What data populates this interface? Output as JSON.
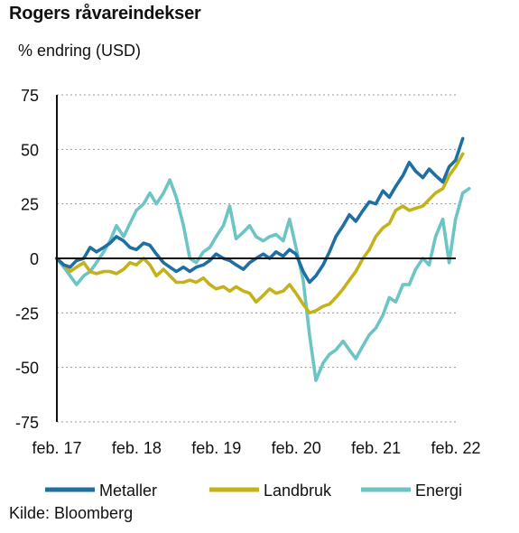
{
  "title": "Rogers råvareindekser",
  "subtitle": "% endring (USD)",
  "source": "Kilde: Bloomberg",
  "chart_data": {
    "type": "line",
    "title": "Rogers råvareindekser",
    "ylabel": "% endring (USD)",
    "xlabel": "",
    "ylim": [
      -75,
      75
    ],
    "xlim": [
      2017.0833,
      2022.0833
    ],
    "yticks": [
      75,
      50,
      25,
      0,
      -25,
      -50,
      -75
    ],
    "xticks": [
      {
        "label": "feb. 17",
        "value": 2017.0833
      },
      {
        "label": "feb. 18",
        "value": 2018.0833
      },
      {
        "label": "feb. 19",
        "value": 2019.0833
      },
      {
        "label": "feb. 20",
        "value": 2020.0833
      },
      {
        "label": "feb. 21",
        "value": 2021.0833
      },
      {
        "label": "feb. 22",
        "value": 2022.0833
      }
    ],
    "grid": "horizontal dashed",
    "legend_position": "bottom",
    "series": [
      {
        "name": "Metaller",
        "color": "#1f6fa3",
        "points": [
          [
            2017.08,
            0
          ],
          [
            2017.17,
            -3
          ],
          [
            2017.25,
            -4
          ],
          [
            2017.33,
            -1
          ],
          [
            2017.42,
            0
          ],
          [
            2017.5,
            5
          ],
          [
            2017.58,
            3
          ],
          [
            2017.67,
            5
          ],
          [
            2017.75,
            7
          ],
          [
            2017.83,
            10
          ],
          [
            2017.92,
            8
          ],
          [
            2018.0,
            5
          ],
          [
            2018.08,
            4
          ],
          [
            2018.17,
            7
          ],
          [
            2018.25,
            6
          ],
          [
            2018.33,
            2
          ],
          [
            2018.42,
            -2
          ],
          [
            2018.5,
            -4
          ],
          [
            2018.58,
            -6
          ],
          [
            2018.67,
            -4
          ],
          [
            2018.75,
            -6
          ],
          [
            2018.83,
            -4
          ],
          [
            2018.92,
            -3
          ],
          [
            2019.0,
            -1
          ],
          [
            2019.08,
            2
          ],
          [
            2019.17,
            0
          ],
          [
            2019.25,
            -1
          ],
          [
            2019.33,
            -3
          ],
          [
            2019.42,
            -5
          ],
          [
            2019.5,
            -2
          ],
          [
            2019.58,
            0
          ],
          [
            2019.67,
            2
          ],
          [
            2019.75,
            0
          ],
          [
            2019.83,
            3
          ],
          [
            2019.92,
            1
          ],
          [
            2020.0,
            4
          ],
          [
            2020.08,
            2
          ],
          [
            2020.17,
            -6
          ],
          [
            2020.25,
            -11
          ],
          [
            2020.33,
            -8
          ],
          [
            2020.42,
            -3
          ],
          [
            2020.5,
            3
          ],
          [
            2020.58,
            10
          ],
          [
            2020.67,
            15
          ],
          [
            2020.75,
            20
          ],
          [
            2020.83,
            17
          ],
          [
            2020.92,
            22
          ],
          [
            2021.0,
            26
          ],
          [
            2021.08,
            25
          ],
          [
            2021.17,
            31
          ],
          [
            2021.25,
            28
          ],
          [
            2021.33,
            33
          ],
          [
            2021.42,
            38
          ],
          [
            2021.5,
            44
          ],
          [
            2021.58,
            40
          ],
          [
            2021.67,
            37
          ],
          [
            2021.75,
            41
          ],
          [
            2021.83,
            38
          ],
          [
            2021.92,
            35
          ],
          [
            2022.0,
            42
          ],
          [
            2022.08,
            45
          ],
          [
            2022.17,
            55
          ]
        ]
      },
      {
        "name": "Landbruk",
        "color": "#c4b21a",
        "points": [
          [
            2017.08,
            0
          ],
          [
            2017.17,
            -3
          ],
          [
            2017.25,
            -6
          ],
          [
            2017.33,
            -4
          ],
          [
            2017.42,
            -2
          ],
          [
            2017.5,
            -6
          ],
          [
            2017.58,
            -7
          ],
          [
            2017.67,
            -6
          ],
          [
            2017.75,
            -6
          ],
          [
            2017.83,
            -7
          ],
          [
            2017.92,
            -5
          ],
          [
            2018.0,
            -2
          ],
          [
            2018.08,
            -3
          ],
          [
            2018.17,
            0
          ],
          [
            2018.25,
            -3
          ],
          [
            2018.33,
            -8
          ],
          [
            2018.42,
            -5
          ],
          [
            2018.5,
            -8
          ],
          [
            2018.58,
            -11
          ],
          [
            2018.67,
            -11
          ],
          [
            2018.75,
            -10
          ],
          [
            2018.83,
            -11
          ],
          [
            2018.92,
            -9
          ],
          [
            2019.0,
            -12
          ],
          [
            2019.08,
            -14
          ],
          [
            2019.17,
            -13
          ],
          [
            2019.25,
            -15
          ],
          [
            2019.33,
            -13
          ],
          [
            2019.42,
            -15
          ],
          [
            2019.5,
            -16
          ],
          [
            2019.58,
            -20
          ],
          [
            2019.67,
            -17
          ],
          [
            2019.75,
            -14
          ],
          [
            2019.83,
            -16
          ],
          [
            2019.92,
            -15
          ],
          [
            2020.0,
            -12
          ],
          [
            2020.08,
            -16
          ],
          [
            2020.17,
            -21
          ],
          [
            2020.25,
            -25
          ],
          [
            2020.33,
            -24
          ],
          [
            2020.42,
            -22
          ],
          [
            2020.5,
            -21
          ],
          [
            2020.58,
            -18
          ],
          [
            2020.67,
            -14
          ],
          [
            2020.75,
            -10
          ],
          [
            2020.83,
            -6
          ],
          [
            2020.92,
            0
          ],
          [
            2021.0,
            4
          ],
          [
            2021.08,
            10
          ],
          [
            2021.17,
            14
          ],
          [
            2021.25,
            16
          ],
          [
            2021.33,
            22
          ],
          [
            2021.42,
            24
          ],
          [
            2021.5,
            22
          ],
          [
            2021.58,
            23
          ],
          [
            2021.67,
            24
          ],
          [
            2021.75,
            27
          ],
          [
            2021.83,
            30
          ],
          [
            2021.92,
            32
          ],
          [
            2022.0,
            38
          ],
          [
            2022.08,
            42
          ],
          [
            2022.17,
            48
          ]
        ]
      },
      {
        "name": "Energi",
        "color": "#6cc4c4",
        "points": [
          [
            2017.08,
            0
          ],
          [
            2017.17,
            -4
          ],
          [
            2017.25,
            -8
          ],
          [
            2017.33,
            -12
          ],
          [
            2017.42,
            -8
          ],
          [
            2017.5,
            -6
          ],
          [
            2017.58,
            -2
          ],
          [
            2017.67,
            3
          ],
          [
            2017.75,
            8
          ],
          [
            2017.83,
            15
          ],
          [
            2017.92,
            10
          ],
          [
            2018.0,
            16
          ],
          [
            2018.08,
            22
          ],
          [
            2018.17,
            25
          ],
          [
            2018.25,
            30
          ],
          [
            2018.33,
            25
          ],
          [
            2018.42,
            30
          ],
          [
            2018.5,
            36
          ],
          [
            2018.58,
            28
          ],
          [
            2018.67,
            15
          ],
          [
            2018.75,
            0
          ],
          [
            2018.83,
            -2
          ],
          [
            2018.92,
            3
          ],
          [
            2019.0,
            5
          ],
          [
            2019.08,
            10
          ],
          [
            2019.17,
            15
          ],
          [
            2019.25,
            24
          ],
          [
            2019.33,
            9
          ],
          [
            2019.42,
            12
          ],
          [
            2019.5,
            15
          ],
          [
            2019.58,
            10
          ],
          [
            2019.67,
            8
          ],
          [
            2019.75,
            10
          ],
          [
            2019.83,
            11
          ],
          [
            2019.92,
            8
          ],
          [
            2020.0,
            18
          ],
          [
            2020.08,
            5
          ],
          [
            2020.17,
            -10
          ],
          [
            2020.25,
            -35
          ],
          [
            2020.33,
            -56
          ],
          [
            2020.42,
            -48
          ],
          [
            2020.5,
            -44
          ],
          [
            2020.58,
            -42
          ],
          [
            2020.67,
            -38
          ],
          [
            2020.75,
            -42
          ],
          [
            2020.83,
            -46
          ],
          [
            2020.92,
            -40
          ],
          [
            2021.0,
            -35
          ],
          [
            2021.08,
            -32
          ],
          [
            2021.17,
            -26
          ],
          [
            2021.25,
            -18
          ],
          [
            2021.33,
            -20
          ],
          [
            2021.42,
            -12
          ],
          [
            2021.5,
            -12
          ],
          [
            2021.58,
            -5
          ],
          [
            2021.67,
            0
          ],
          [
            2021.75,
            -3
          ],
          [
            2021.83,
            10
          ],
          [
            2021.92,
            18
          ],
          [
            2022.0,
            -2
          ],
          [
            2022.08,
            18
          ],
          [
            2022.17,
            30
          ],
          [
            2022.25,
            32
          ]
        ]
      }
    ]
  }
}
